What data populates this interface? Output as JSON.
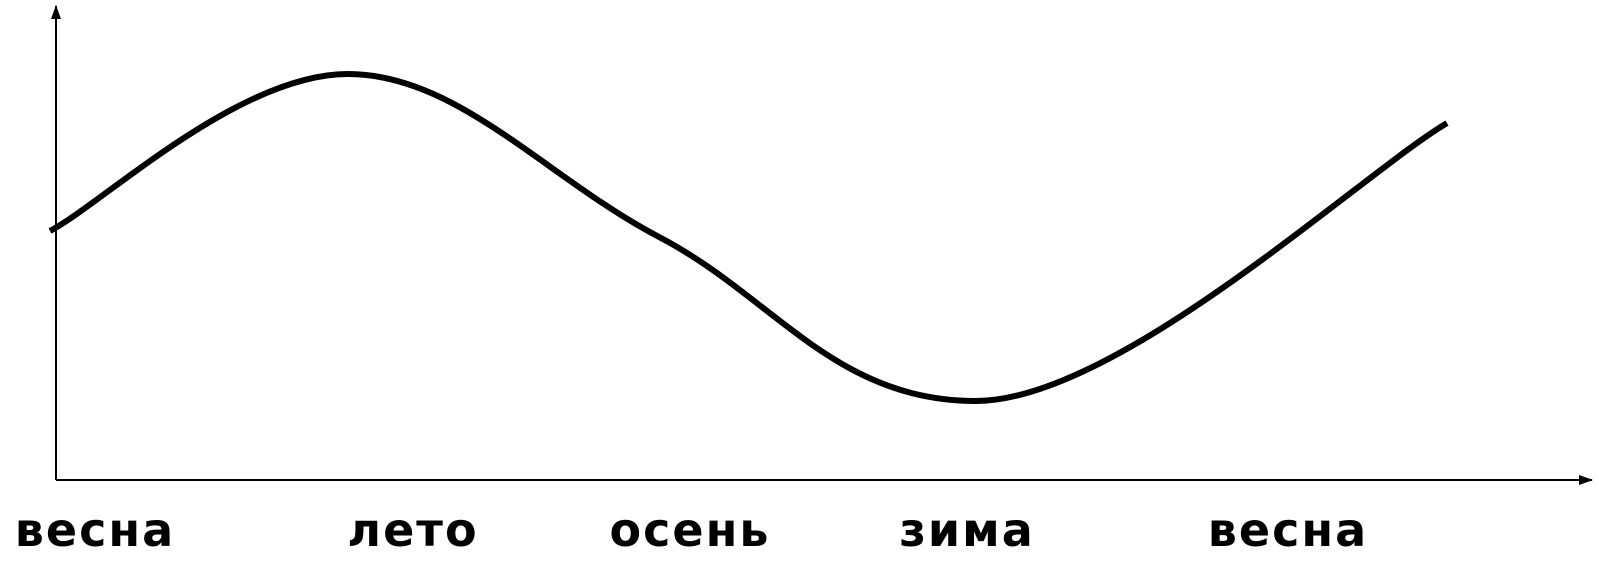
{
  "chart_data": {
    "type": "line",
    "categories": [
      "весна",
      "лето",
      "осень",
      "зима",
      "весна"
    ],
    "series": [
      {
        "values": [
          0.52,
          1.0,
          0.5,
          0.0,
          0.85
        ],
        "color": "#000000"
      }
    ],
    "x_arrow": true,
    "y_arrow": true,
    "grid": false,
    "legend": "none"
  }
}
